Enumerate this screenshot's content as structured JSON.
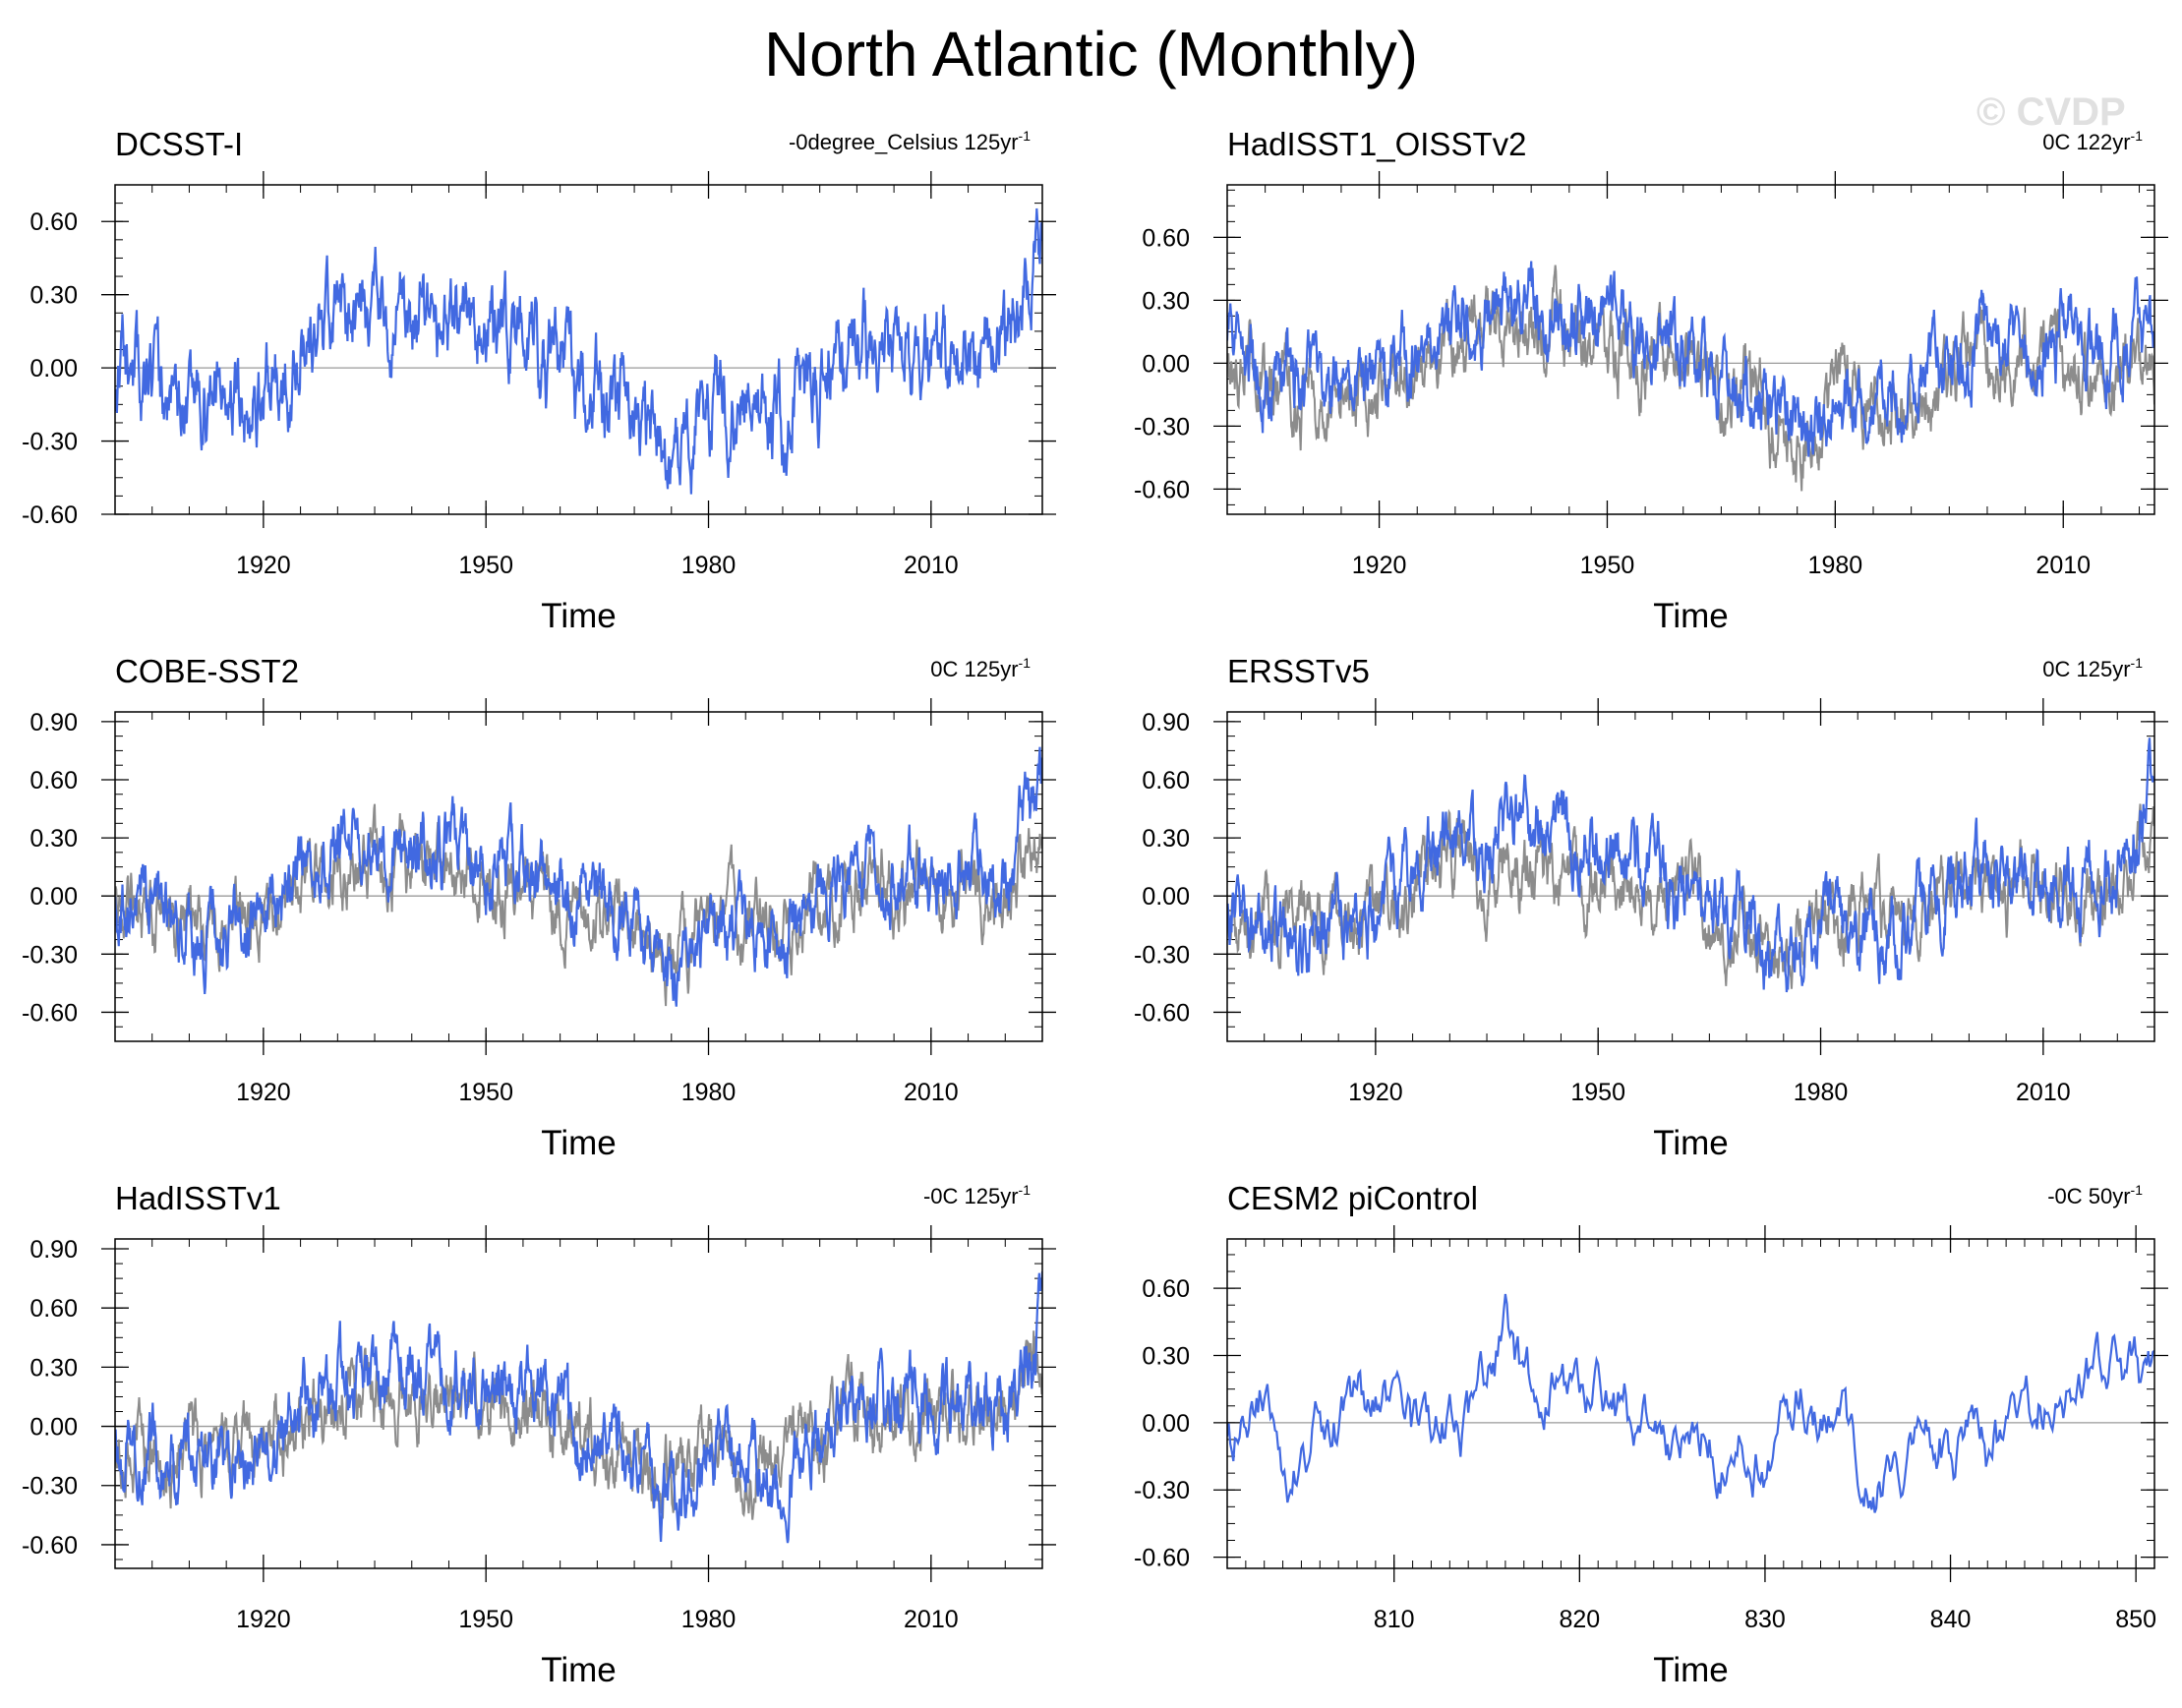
{
  "title": "North Atlantic (Monthly)",
  "watermark": "© CVDP",
  "colors": {
    "observed": "#4169e1",
    "reference": "#8c8c8c",
    "zero_line": "#9a9a9a",
    "axis": "#000000"
  },
  "chart_data": [
    {
      "type": "line",
      "title": "DCSST-I",
      "annotation": "-0degree_Celsius 125yr",
      "annotation_sup": "-1",
      "xlabel": "Time",
      "ylabel": "",
      "xlim": [
        1900,
        2025
      ],
      "ylim": [
        -0.6,
        0.75
      ],
      "yticks": [
        -0.6,
        -0.3,
        0.0,
        0.3,
        0.6
      ],
      "ytick_labels": [
        "-0.60",
        "-0.30",
        "0.00",
        "0.30",
        "0.60"
      ],
      "xticks": [
        1920,
        1950,
        1980,
        2010
      ],
      "series": [
        {
          "role": "observed",
          "seed": 11,
          "x": [
            1900,
            1910,
            1920,
            1930,
            1940,
            1950,
            1960,
            1970,
            1975,
            1980,
            1990,
            2000,
            2010,
            2020,
            2025
          ],
          "y": [
            -0.05,
            -0.15,
            -0.1,
            0.25,
            0.2,
            0.15,
            0.0,
            -0.2,
            -0.4,
            -0.15,
            -0.2,
            0.1,
            0.05,
            0.05,
            0.55
          ]
        }
      ]
    },
    {
      "type": "line",
      "title": "HadISST1_OISSTv2",
      "annotation": "0C 122yr",
      "annotation_sup": "-1",
      "xlabel": "Time",
      "ylabel": "",
      "xlim": [
        1900,
        2022
      ],
      "ylim": [
        -0.72,
        0.85
      ],
      "yticks": [
        -0.6,
        -0.3,
        0.0,
        0.3,
        0.6
      ],
      "ytick_labels": [
        "-0.60",
        "-0.30",
        "0.00",
        "0.30",
        "0.60"
      ],
      "xticks": [
        1920,
        1950,
        1980,
        2010
      ],
      "series": [
        {
          "role": "reference",
          "seed": 21,
          "x": [
            1900,
            1910,
            1920,
            1930,
            1940,
            1950,
            1960,
            1970,
            1975,
            1980,
            1990,
            2000,
            2010,
            2022
          ],
          "y": [
            -0.05,
            -0.15,
            -0.15,
            0.15,
            0.2,
            0.1,
            0.0,
            -0.2,
            -0.35,
            -0.15,
            -0.2,
            0.05,
            0.0,
            0.0
          ]
        },
        {
          "role": "observed",
          "seed": 22,
          "x": [
            1900,
            1910,
            1920,
            1930,
            1940,
            1950,
            1960,
            1970,
            1975,
            1980,
            1990,
            2000,
            2010,
            2022
          ],
          "y": [
            0.0,
            -0.1,
            -0.1,
            0.2,
            0.3,
            0.2,
            0.05,
            -0.15,
            -0.35,
            -0.15,
            -0.15,
            0.15,
            0.1,
            0.1
          ]
        }
      ]
    },
    {
      "type": "line",
      "title": "COBE-SST2",
      "annotation": "0C 125yr",
      "annotation_sup": "-1",
      "xlabel": "Time",
      "ylabel": "",
      "xlim": [
        1900,
        2025
      ],
      "ylim": [
        -0.75,
        0.95
      ],
      "yticks": [
        -0.6,
        -0.3,
        0.0,
        0.3,
        0.6,
        0.9
      ],
      "ytick_labels": [
        "-0.60",
        "-0.30",
        "0.00",
        "0.30",
        "0.60",
        "0.90"
      ],
      "xticks": [
        1920,
        1950,
        1980,
        2010
      ],
      "series": [
        {
          "role": "reference",
          "seed": 31,
          "x": [
            1900,
            1910,
            1920,
            1930,
            1940,
            1950,
            1960,
            1970,
            1975,
            1980,
            1990,
            2000,
            2010,
            2020,
            2025
          ],
          "y": [
            -0.05,
            -0.15,
            -0.1,
            0.15,
            0.15,
            0.1,
            0.0,
            -0.15,
            -0.3,
            -0.1,
            -0.15,
            0.05,
            0.05,
            0.0,
            0.4
          ]
        },
        {
          "role": "observed",
          "seed": 32,
          "x": [
            1900,
            1910,
            1920,
            1930,
            1940,
            1950,
            1960,
            1970,
            1975,
            1980,
            1990,
            2000,
            2010,
            2020,
            2025
          ],
          "y": [
            -0.05,
            -0.2,
            -0.1,
            0.25,
            0.3,
            0.2,
            0.05,
            -0.15,
            -0.4,
            -0.15,
            -0.2,
            0.15,
            0.1,
            0.05,
            0.6
          ]
        }
      ]
    },
    {
      "type": "line",
      "title": "ERSSTv5",
      "annotation": "0C 125yr",
      "annotation_sup": "-1",
      "xlabel": "Time",
      "ylabel": "",
      "xlim": [
        1900,
        2025
      ],
      "ylim": [
        -0.75,
        0.95
      ],
      "yticks": [
        -0.6,
        -0.3,
        0.0,
        0.3,
        0.6,
        0.9
      ],
      "ytick_labels": [
        "-0.60",
        "-0.30",
        "0.00",
        "0.30",
        "0.60",
        "0.90"
      ],
      "xticks": [
        1920,
        1950,
        1980,
        2010
      ],
      "series": [
        {
          "role": "reference",
          "seed": 41,
          "x": [
            1900,
            1910,
            1920,
            1930,
            1940,
            1950,
            1960,
            1970,
            1975,
            1980,
            1990,
            2000,
            2010,
            2020,
            2025
          ],
          "y": [
            -0.05,
            -0.15,
            -0.1,
            0.15,
            0.15,
            0.1,
            0.0,
            -0.15,
            -0.3,
            -0.1,
            -0.15,
            0.05,
            0.05,
            0.0,
            0.4
          ]
        },
        {
          "role": "observed",
          "seed": 42,
          "x": [
            1900,
            1910,
            1920,
            1930,
            1940,
            1950,
            1960,
            1970,
            1975,
            1980,
            1990,
            2000,
            2010,
            2020,
            2025
          ],
          "y": [
            -0.05,
            -0.2,
            -0.05,
            0.25,
            0.35,
            0.25,
            0.05,
            -0.15,
            -0.4,
            -0.15,
            -0.2,
            0.15,
            0.1,
            0.05,
            0.6
          ]
        }
      ]
    },
    {
      "type": "line",
      "title": "HadISSTv1",
      "annotation": "-0C 125yr",
      "annotation_sup": "-1",
      "xlabel": "Time",
      "ylabel": "",
      "xlim": [
        1900,
        2025
      ],
      "ylim": [
        -0.72,
        0.95
      ],
      "yticks": [
        -0.6,
        -0.3,
        0.0,
        0.3,
        0.6,
        0.9
      ],
      "ytick_labels": [
        "-0.60",
        "-0.30",
        "0.00",
        "0.30",
        "0.60",
        "0.90"
      ],
      "xticks": [
        1920,
        1950,
        1980,
        2010
      ],
      "series": [
        {
          "role": "reference",
          "seed": 51,
          "x": [
            1900,
            1910,
            1920,
            1930,
            1940,
            1950,
            1960,
            1970,
            1975,
            1980,
            1990,
            2000,
            2010,
            2020,
            2025
          ],
          "y": [
            -0.05,
            -0.15,
            -0.1,
            0.15,
            0.15,
            0.1,
            0.0,
            -0.15,
            -0.3,
            -0.1,
            -0.15,
            0.05,
            0.05,
            0.0,
            0.4
          ]
        },
        {
          "role": "observed",
          "seed": 52,
          "x": [
            1900,
            1910,
            1920,
            1930,
            1940,
            1950,
            1960,
            1970,
            1975,
            1980,
            1990,
            2000,
            2010,
            2020,
            2025
          ],
          "y": [
            -0.05,
            -0.2,
            -0.1,
            0.2,
            0.3,
            0.2,
            0.05,
            -0.15,
            -0.4,
            -0.15,
            -0.2,
            0.15,
            0.1,
            0.05,
            0.55
          ]
        }
      ]
    },
    {
      "type": "line",
      "title": "CESM2 piControl",
      "annotation": "-0C 50yr",
      "annotation_sup": "-1",
      "xlabel": "Time",
      "ylabel": "",
      "xlim": [
        801,
        851
      ],
      "ylim": [
        -0.65,
        0.82
      ],
      "yticks": [
        -0.6,
        -0.3,
        0.0,
        0.3,
        0.6
      ],
      "ytick_labels": [
        "-0.60",
        "-0.30",
        "0.00",
        "0.30",
        "0.60"
      ],
      "xticks": [
        810,
        820,
        830,
        840,
        850
      ],
      "series": [
        {
          "role": "observed",
          "seed": 61,
          "x": [
            801,
            802,
            803,
            804,
            806,
            808,
            810,
            812,
            814,
            816,
            817,
            818,
            820,
            822,
            824,
            826,
            828,
            830,
            832,
            834,
            836,
            838,
            840,
            842,
            844,
            846,
            848,
            850,
            851
          ],
          "y": [
            -0.12,
            -0.02,
            0.18,
            -0.28,
            -0.05,
            0.05,
            0.0,
            -0.15,
            0.0,
            0.45,
            0.15,
            0.1,
            0.25,
            0.05,
            -0.05,
            0.0,
            -0.1,
            -0.2,
            0.15,
            -0.05,
            -0.25,
            -0.05,
            -0.1,
            -0.15,
            0.0,
            0.15,
            0.25,
            0.2,
            0.15
          ]
        }
      ]
    }
  ]
}
